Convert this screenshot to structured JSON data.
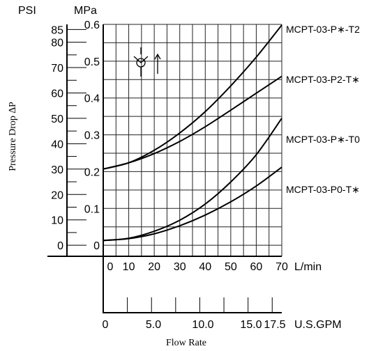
{
  "chart_data": {
    "type": "line",
    "title": "",
    "left_axis_unit": "PSI",
    "y_unit": "MPa",
    "ylabel": "Pressure Drop ∆P",
    "xlabel": "Flow Rate",
    "x_unit": "L/min",
    "gpm_unit": "U.S.GPM",
    "xlim": [
      0,
      70
    ],
    "ylim": [
      -0.03,
      0.6
    ],
    "x_ticks": [
      "0",
      "10",
      "20",
      "30",
      "40",
      "50",
      "60",
      "70"
    ],
    "y_ticks": [
      "0",
      "0.1",
      "0.2",
      "0.3",
      "0.4",
      "0.5",
      "0.6"
    ],
    "psi_ticks": [
      "0",
      "10",
      "20",
      "30",
      "40",
      "50",
      "60",
      "70",
      "80",
      "85"
    ],
    "gpm_ticks": [
      "0",
      "5.0",
      "10.0",
      "15.0",
      "17.5"
    ],
    "grid": true,
    "series": [
      {
        "name": "MCPT-03-P∗-T2",
        "x": [
          0,
          10,
          20,
          30,
          40,
          50,
          60,
          70
        ],
        "values": [
          0.207,
          0.224,
          0.258,
          0.305,
          0.363,
          0.433,
          0.511,
          0.598
        ]
      },
      {
        "name": "MCPT-03-P2-T∗",
        "x": [
          0,
          10,
          20,
          30,
          40,
          50,
          60,
          70
        ],
        "values": [
          0.207,
          0.224,
          0.249,
          0.282,
          0.322,
          0.367,
          0.413,
          0.459
        ]
      },
      {
        "name": "MCPT-03-P∗-T0",
        "x": [
          0,
          10,
          20,
          30,
          40,
          50,
          60,
          70
        ],
        "values": [
          0.013,
          0.019,
          0.038,
          0.068,
          0.112,
          0.172,
          0.246,
          0.345
        ]
      },
      {
        "name": "MCPT-03-P0-T∗",
        "x": [
          0,
          10,
          20,
          30,
          40,
          50,
          60,
          70
        ],
        "values": [
          0.013,
          0.018,
          0.031,
          0.053,
          0.082,
          0.118,
          0.161,
          0.212
        ]
      }
    ]
  }
}
